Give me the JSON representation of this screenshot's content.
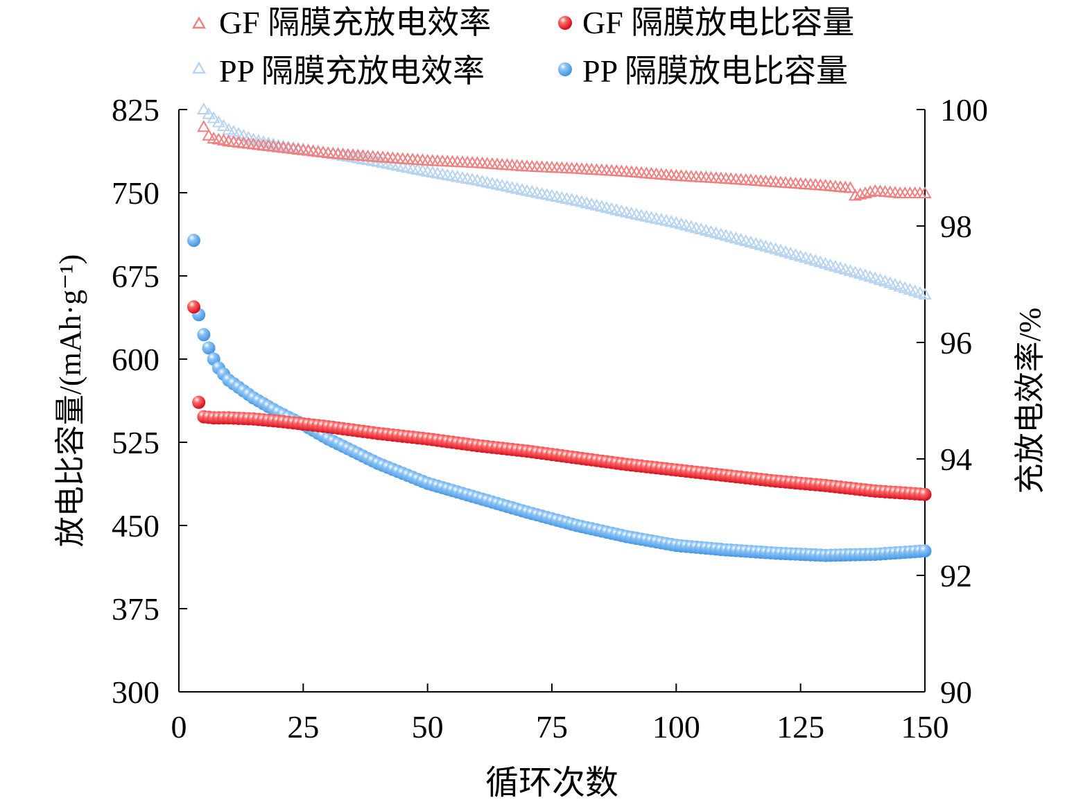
{
  "chart_data": {
    "type": "scatter",
    "xlabel": "循环次数",
    "ylabel": "放电比容量/(mAh·g⁻¹)",
    "y2label": "充放电效率/%",
    "xlim": [
      0,
      150
    ],
    "ylim": [
      300,
      825
    ],
    "y2lim": [
      90,
      100
    ],
    "xticks": [
      "0",
      "25",
      "50",
      "75",
      "100",
      "125",
      "150"
    ],
    "yticks": [
      "300",
      "375",
      "450",
      "525",
      "600",
      "675",
      "750",
      "825"
    ],
    "y2ticks": [
      "90",
      "92",
      "94",
      "96",
      "98",
      "100"
    ],
    "legend_placement": "top",
    "colors": {
      "gf_eff": "#f08080",
      "gf_cap": "#e8141a",
      "pp_eff": "#b6d4f2",
      "pp_cap": "#4da3f0"
    },
    "series": [
      {
        "name": "GF 隔膜充放电效率",
        "axis": "right",
        "marker": "triangle-open",
        "points": [
          [
            5,
            99.7
          ],
          [
            6,
            99.55
          ],
          [
            7,
            99.5
          ],
          [
            10,
            99.45
          ],
          [
            20,
            99.35
          ],
          [
            30,
            99.25
          ],
          [
            40,
            99.18
          ],
          [
            50,
            99.12
          ],
          [
            60,
            99.08
          ],
          [
            70,
            99.02
          ],
          [
            80,
            98.98
          ],
          [
            90,
            98.93
          ],
          [
            100,
            98.86
          ],
          [
            110,
            98.81
          ],
          [
            120,
            98.75
          ],
          [
            130,
            98.69
          ],
          [
            135,
            98.65
          ],
          [
            136,
            98.52
          ],
          [
            140,
            98.6
          ],
          [
            145,
            98.56
          ],
          [
            150,
            98.56
          ]
        ]
      },
      {
        "name": "GF 隔膜放电比容量",
        "axis": "left",
        "marker": "sphere",
        "points": [
          [
            3,
            647
          ],
          [
            4,
            561
          ],
          [
            5,
            548
          ],
          [
            7,
            547
          ],
          [
            10,
            547
          ],
          [
            15,
            546
          ],
          [
            20,
            544
          ],
          [
            30,
            539
          ],
          [
            40,
            533
          ],
          [
            50,
            528
          ],
          [
            60,
            522
          ],
          [
            70,
            517
          ],
          [
            80,
            511
          ],
          [
            90,
            505
          ],
          [
            100,
            500
          ],
          [
            110,
            495
          ],
          [
            120,
            490
          ],
          [
            130,
            486
          ],
          [
            140,
            481
          ],
          [
            150,
            478
          ]
        ]
      },
      {
        "name": "PP 隔膜充放电效率",
        "axis": "right",
        "marker": "triangle-open",
        "points": [
          [
            5,
            100.0
          ],
          [
            6,
            99.92
          ],
          [
            7,
            99.85
          ],
          [
            8,
            99.78
          ],
          [
            10,
            99.65
          ],
          [
            15,
            99.48
          ],
          [
            20,
            99.38
          ],
          [
            30,
            99.25
          ],
          [
            40,
            99.1
          ],
          [
            50,
            98.93
          ],
          [
            60,
            98.78
          ],
          [
            70,
            98.6
          ],
          [
            80,
            98.43
          ],
          [
            90,
            98.23
          ],
          [
            100,
            98.05
          ],
          [
            110,
            97.83
          ],
          [
            120,
            97.6
          ],
          [
            130,
            97.35
          ],
          [
            140,
            97.1
          ],
          [
            150,
            96.82
          ]
        ]
      },
      {
        "name": "PP 隔膜放电比容量",
        "axis": "left",
        "marker": "sphere",
        "points": [
          [
            3,
            707
          ],
          [
            4,
            640
          ],
          [
            5,
            622
          ],
          [
            6,
            610
          ],
          [
            7,
            600
          ],
          [
            8,
            592
          ],
          [
            10,
            581
          ],
          [
            15,
            565
          ],
          [
            20,
            552
          ],
          [
            25,
            541
          ],
          [
            30,
            528
          ],
          [
            40,
            506
          ],
          [
            50,
            488
          ],
          [
            60,
            475
          ],
          [
            70,
            462
          ],
          [
            80,
            450
          ],
          [
            90,
            440
          ],
          [
            100,
            432
          ],
          [
            110,
            428
          ],
          [
            120,
            425
          ],
          [
            130,
            423
          ],
          [
            140,
            424
          ],
          [
            150,
            427
          ]
        ]
      }
    ]
  }
}
